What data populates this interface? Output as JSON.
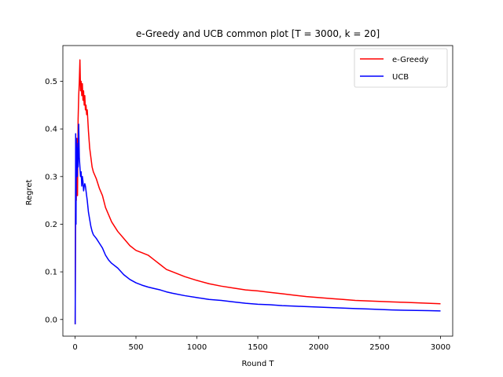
{
  "chart_data": {
    "type": "line",
    "title": "e-Greedy and UCB common plot [T = 3000, k = 20]",
    "xlabel": "Round T",
    "ylabel": "Regret",
    "xlim": [
      -100,
      3100
    ],
    "ylim": [
      -0.035,
      0.575
    ],
    "xticks": [
      0,
      500,
      1000,
      1500,
      2000,
      2500,
      3000
    ],
    "yticks": [
      0.0,
      0.1,
      0.2,
      0.3,
      0.4,
      0.5
    ],
    "xtick_labels": [
      "0",
      "500",
      "1000",
      "1500",
      "2000",
      "2500",
      "3000"
    ],
    "ytick_labels": [
      "0.0",
      "0.1",
      "0.2",
      "0.3",
      "0.4",
      "0.5"
    ],
    "grid": false,
    "legend": "top-right",
    "series": [
      {
        "name": "e-Greedy",
        "color": "#ff0000",
        "x": [
          1,
          5,
          10,
          15,
          20,
          25,
          30,
          35,
          40,
          45,
          50,
          55,
          60,
          65,
          70,
          75,
          80,
          85,
          90,
          95,
          100,
          110,
          120,
          130,
          140,
          150,
          175,
          200,
          225,
          250,
          275,
          300,
          350,
          400,
          450,
          500,
          550,
          600,
          650,
          700,
          750,
          800,
          900,
          1000,
          1100,
          1200,
          1300,
          1400,
          1500,
          1600,
          1700,
          1800,
          1900,
          2000,
          2100,
          2200,
          2300,
          2400,
          2500,
          2600,
          2700,
          2800,
          2900,
          3000
        ],
        "values": [
          -0.01,
          0.3,
          0.25,
          0.38,
          0.26,
          0.42,
          0.47,
          0.5,
          0.545,
          0.48,
          0.5,
          0.47,
          0.495,
          0.46,
          0.48,
          0.45,
          0.47,
          0.44,
          0.45,
          0.43,
          0.44,
          0.395,
          0.36,
          0.34,
          0.32,
          0.31,
          0.295,
          0.275,
          0.26,
          0.235,
          0.22,
          0.205,
          0.185,
          0.17,
          0.155,
          0.145,
          0.14,
          0.135,
          0.125,
          0.115,
          0.105,
          0.1,
          0.09,
          0.082,
          0.075,
          0.07,
          0.066,
          0.062,
          0.06,
          0.057,
          0.054,
          0.051,
          0.048,
          0.046,
          0.044,
          0.042,
          0.04,
          0.039,
          0.038,
          0.037,
          0.036,
          0.035,
          0.034,
          0.033
        ]
      },
      {
        "name": "UCB",
        "color": "#0000ff",
        "x": [
          1,
          3,
          5,
          8,
          10,
          13,
          15,
          18,
          20,
          23,
          25,
          28,
          30,
          35,
          40,
          45,
          50,
          55,
          60,
          65,
          70,
          75,
          80,
          85,
          90,
          95,
          100,
          110,
          120,
          130,
          140,
          150,
          175,
          200,
          225,
          250,
          275,
          300,
          350,
          400,
          450,
          500,
          550,
          600,
          650,
          700,
          750,
          800,
          900,
          1000,
          1100,
          1200,
          1300,
          1400,
          1500,
          1600,
          1700,
          1800,
          1900,
          2000,
          2100,
          2200,
          2300,
          2400,
          2500,
          2600,
          2700,
          2800,
          2900,
          3000
        ],
        "values": [
          -0.01,
          0.15,
          0.39,
          0.2,
          0.38,
          0.31,
          0.36,
          0.3,
          0.33,
          0.37,
          0.32,
          0.39,
          0.41,
          0.34,
          0.32,
          0.3,
          0.31,
          0.28,
          0.3,
          0.29,
          0.27,
          0.28,
          0.285,
          0.28,
          0.27,
          0.26,
          0.25,
          0.225,
          0.21,
          0.195,
          0.185,
          0.178,
          0.17,
          0.16,
          0.15,
          0.135,
          0.125,
          0.118,
          0.108,
          0.094,
          0.084,
          0.077,
          0.072,
          0.068,
          0.065,
          0.062,
          0.058,
          0.055,
          0.05,
          0.046,
          0.042,
          0.04,
          0.037,
          0.034,
          0.032,
          0.031,
          0.029,
          0.028,
          0.027,
          0.026,
          0.025,
          0.024,
          0.023,
          0.022,
          0.021,
          0.02,
          0.0195,
          0.019,
          0.0185,
          0.018
        ]
      }
    ]
  }
}
